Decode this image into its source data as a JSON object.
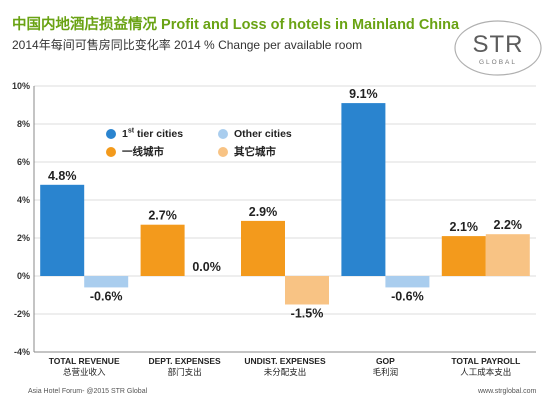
{
  "title": "中国内地酒店损益情况 Profit and Loss of hotels in Mainland China",
  "subtitle": "2014年每间可售房同比变化率 2014 % Change per available room",
  "logo": {
    "text": "STR",
    "subtext": "GLOBAL"
  },
  "footer": {
    "left": "Asia Hotel Forum- @2015 STR Global",
    "right": "www.strglobal.com"
  },
  "colors": {
    "tier1": "#2a84cf",
    "tier1_cn": "#f39a1c",
    "other": "#a9cdee",
    "other_cn": "#f8c384",
    "title": "#6aa314",
    "grid": "#dddddd"
  },
  "legend": {
    "tier1_prefix": "1",
    "tier1_sup": "st",
    "tier1_suffix": " tier cities",
    "tier1_cn": "一线城市",
    "other": "Other cities",
    "other_cn": "其它城市"
  },
  "chart_data": {
    "type": "bar",
    "categories": [
      {
        "en": "TOTAL REVENUE",
        "cn": "总营业收入"
      },
      {
        "en": "DEPT. EXPENSES",
        "cn": "部门支出"
      },
      {
        "en": "UNDIST. EXPENSES",
        "cn": "未分配支出"
      },
      {
        "en": "GOP",
        "cn": "毛利润"
      },
      {
        "en": "TOTAL PAYROLL",
        "cn": "人工成本支出"
      }
    ],
    "series": [
      {
        "name": "1st tier cities / 一线城市",
        "values": [
          4.8,
          2.7,
          2.9,
          9.1,
          2.1
        ],
        "colors": [
          "#2a84cf",
          "#f39a1c",
          "#f39a1c",
          "#2a84cf",
          "#f39a1c"
        ]
      },
      {
        "name": "Other cities / 其它城市",
        "values": [
          -0.6,
          0.0,
          -1.5,
          -0.6,
          2.2
        ],
        "colors": [
          "#a9cdee",
          "#f8c384",
          "#f8c384",
          "#a9cdee",
          "#f8c384"
        ]
      }
    ],
    "labels": [
      [
        "4.8%",
        "2.7%",
        "2.9%",
        "9.1%",
        "2.1%"
      ],
      [
        "-0.6%",
        "0.0%",
        "-1.5%",
        "-0.6%",
        "2.2%"
      ]
    ],
    "ylim": [
      -4,
      10
    ],
    "yticks": [
      -4,
      -2,
      0,
      2,
      4,
      6,
      8,
      10
    ],
    "ytick_labels": [
      "-4%",
      "-2%",
      "0%",
      "2%",
      "4%",
      "6%",
      "8%",
      "10%"
    ],
    "grid": true,
    "legend_position": "upper-left"
  }
}
